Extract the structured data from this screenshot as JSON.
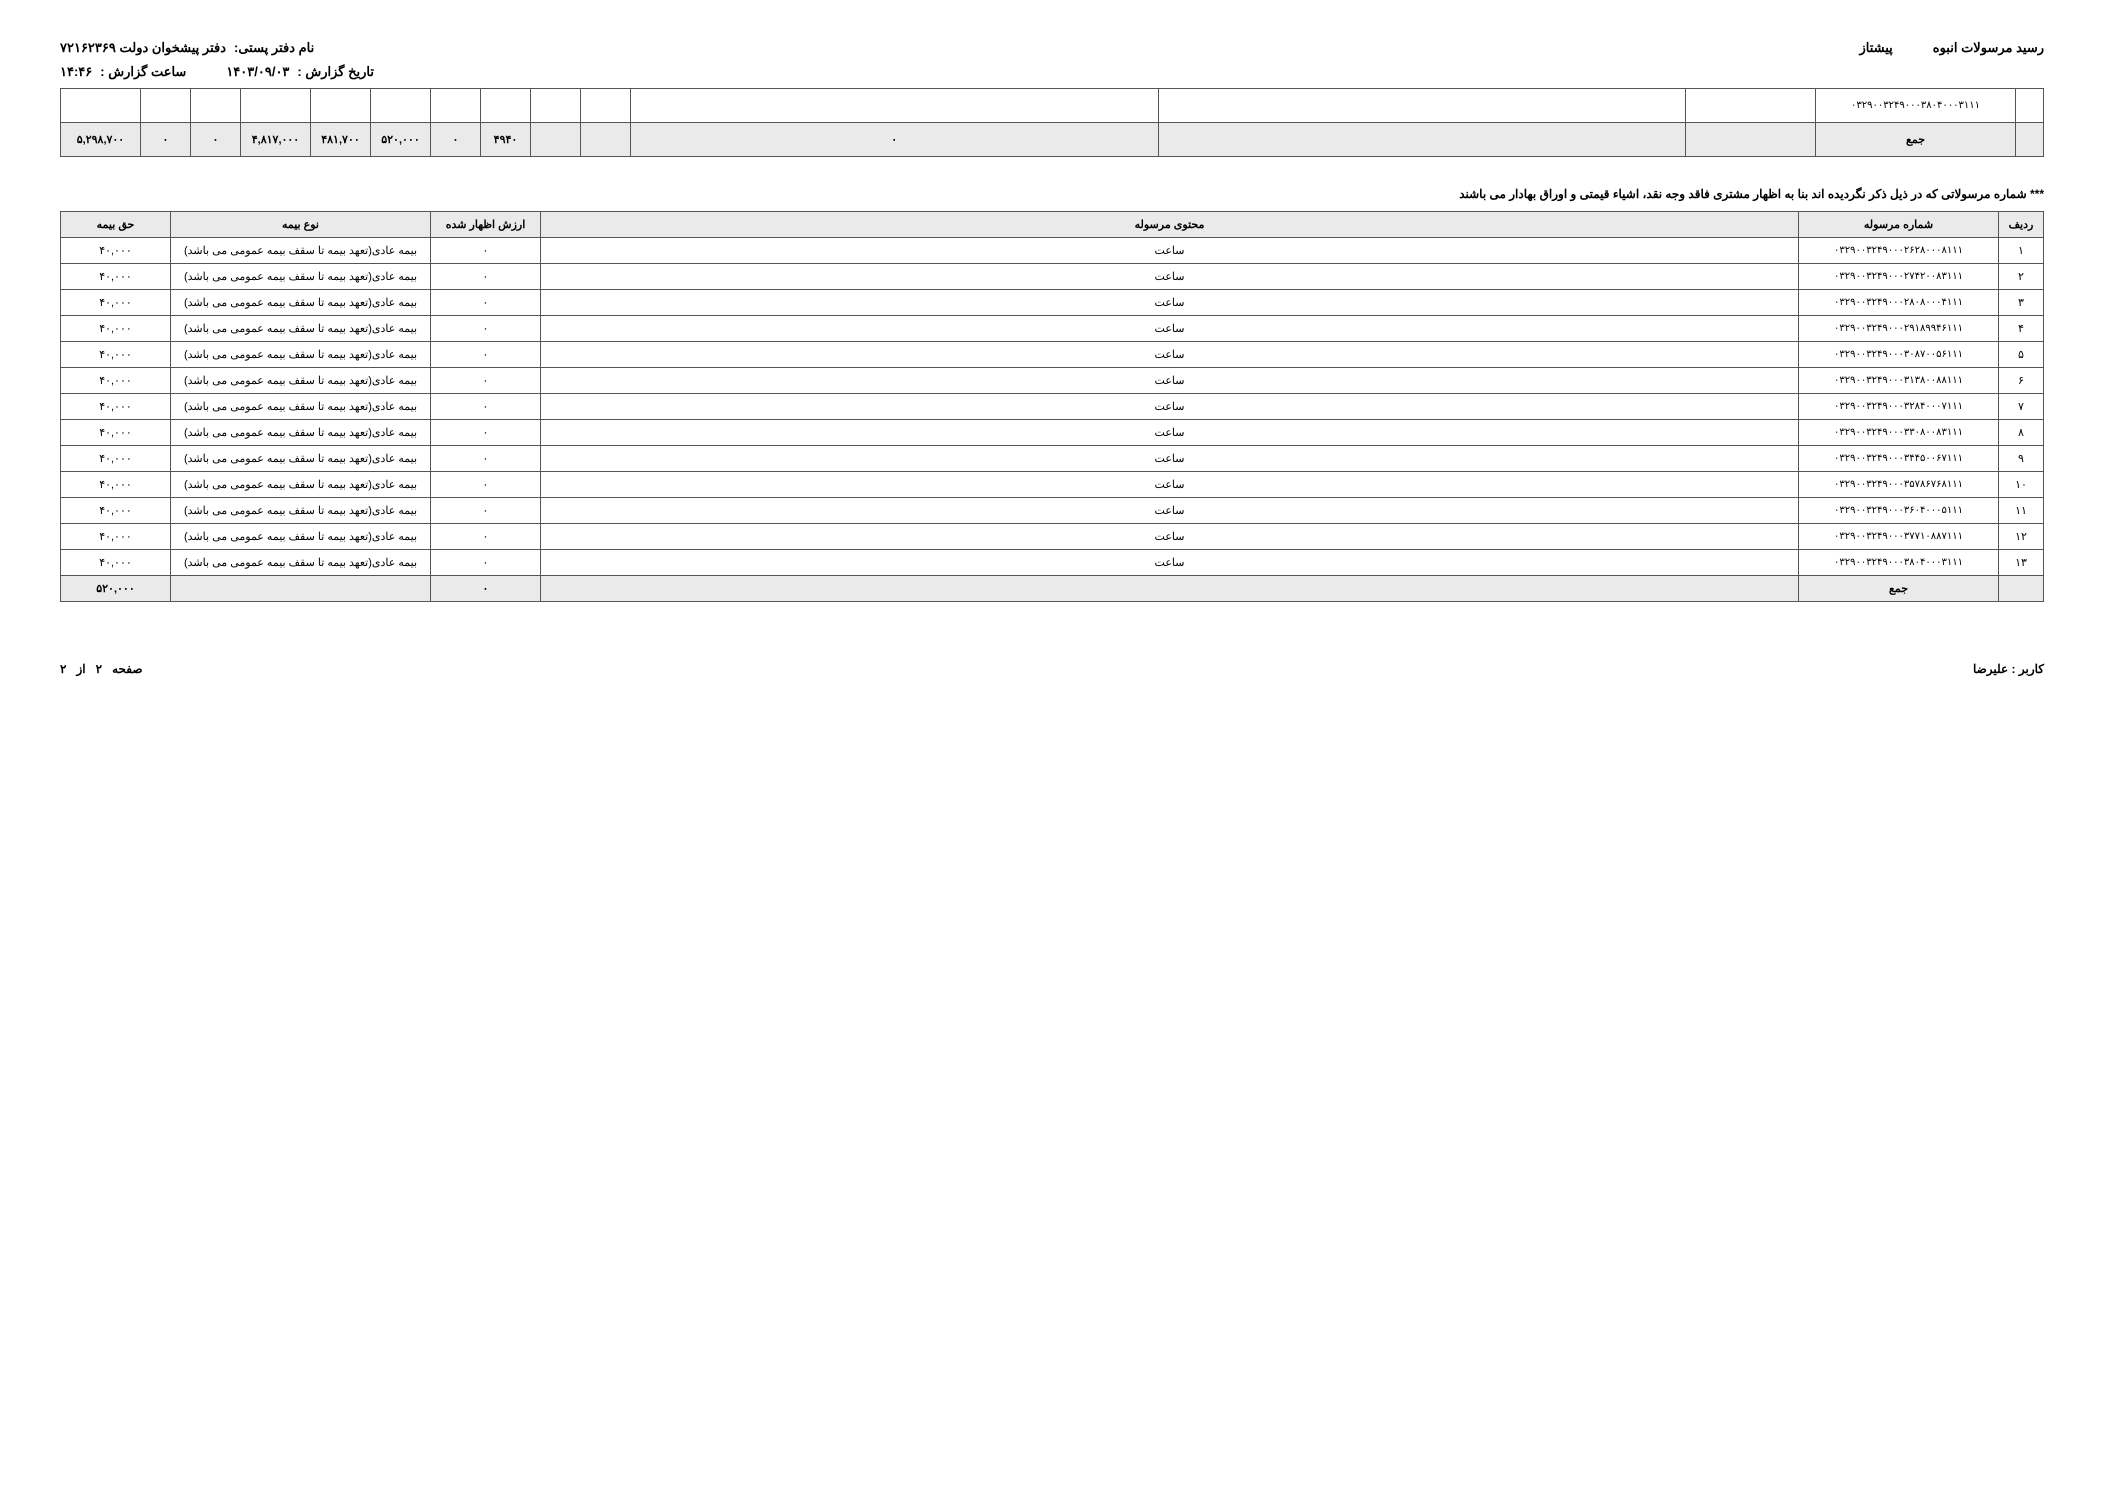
{
  "header": {
    "title_right_label": "رسید مرسولات انبوه",
    "title_right_value": "پیشتاز",
    "title_left_label": "نام دفتر پستی:",
    "title_left_value": "دفتر پیشخوان دولت ۷۲۱۶۲۳۶۹",
    "date_label": "تاریخ گزارش :",
    "date_value": "۱۴۰۳/۰۹/۰۳",
    "time_label": "ساعت گزارش :",
    "time_value": "۱۴:۴۶"
  },
  "top_table": {
    "tracking_col_value": "۰۳۲۹۰۰۳۲۴۹۰۰۰۳۸۰۴۰۰۰۳۱۱۱",
    "sum_label": "جمع",
    "cells": [
      "",
      "",
      "۰",
      "",
      "",
      "۴۹۴۰",
      "۰",
      "۵۲۰,۰۰۰",
      "۴۸۱,۷۰۰",
      "۴,۸۱۷,۰۰۰",
      "۰",
      "۰",
      "۵,۲۹۸,۷۰۰"
    ]
  },
  "note": "*** شماره مرسولاتی که در ذیل ذکر نگردیده اند بنا به اظهار مشتری فاقد وجه نقد، اشیاء قیمتی و اوراق بهادار می باشند",
  "table2": {
    "headers": [
      "ردیف",
      "شماره مرسوله",
      "محتوی مرسوله",
      "ارزش اظهار شده",
      "نوع بیمه",
      "حق بیمه"
    ],
    "content": "ساعت",
    "declared": "۰",
    "ins_type": "بیمه عادی(تعهد بیمه تا سقف بیمه عمومی می باشد)",
    "ins_fee": "۴۰,۰۰۰",
    "rows": [
      {
        "i": "۱",
        "trk": "۰۳۲۹۰۰۳۲۴۹۰۰۰۲۶۲۸۰۰۰۸۱۱۱"
      },
      {
        "i": "۲",
        "trk": "۰۳۲۹۰۰۳۲۴۹۰۰۰۲۷۴۲۰۰۸۳۱۱۱"
      },
      {
        "i": "۳",
        "trk": "۰۳۲۹۰۰۳۲۴۹۰۰۰۲۸۰۸۰۰۰۴۱۱۱"
      },
      {
        "i": "۴",
        "trk": "۰۳۲۹۰۰۳۲۴۹۰۰۰۲۹۱۸۹۹۴۶۱۱۱"
      },
      {
        "i": "۵",
        "trk": "۰۳۲۹۰۰۳۲۴۹۰۰۰۳۰۸۷۰۰۵۶۱۱۱"
      },
      {
        "i": "۶",
        "trk": "۰۳۲۹۰۰۳۲۴۹۰۰۰۳۱۳۸۰۰۸۸۱۱۱"
      },
      {
        "i": "۷",
        "trk": "۰۳۲۹۰۰۳۲۴۹۰۰۰۳۲۸۴۰۰۰۷۱۱۱"
      },
      {
        "i": "۸",
        "trk": "۰۳۲۹۰۰۳۲۴۹۰۰۰۳۳۰۸۰۰۸۳۱۱۱"
      },
      {
        "i": "۹",
        "trk": "۰۳۲۹۰۰۳۲۴۹۰۰۰۳۴۴۵۰۰۶۷۱۱۱"
      },
      {
        "i": "۱۰",
        "trk": "۰۳۲۹۰۰۳۲۴۹۰۰۰۳۵۷۸۶۷۶۸۱۱۱"
      },
      {
        "i": "۱۱",
        "trk": "۰۳۲۹۰۰۳۲۴۹۰۰۰۳۶۰۴۰۰۰۵۱۱۱"
      },
      {
        "i": "۱۲",
        "trk": "۰۳۲۹۰۰۳۲۴۹۰۰۰۳۷۷۱۰۸۸۷۱۱۱"
      },
      {
        "i": "۱۳",
        "trk": "۰۳۲۹۰۰۳۲۴۹۰۰۰۳۸۰۴۰۰۰۳۱۱۱"
      }
    ],
    "sum_label": "جمع",
    "sum_declared": "۰",
    "sum_fee": "۵۲۰,۰۰۰"
  },
  "footer": {
    "user_label": "کاربر :",
    "user_value": "علیرضا",
    "page_label": "صفحه",
    "page_cur": "۲",
    "page_of": "از",
    "page_total": "۲"
  },
  "style": {
    "header_bg": "#eaeaea",
    "border": "#555555",
    "font_size_body": 12,
    "font_size_cell": 11
  }
}
